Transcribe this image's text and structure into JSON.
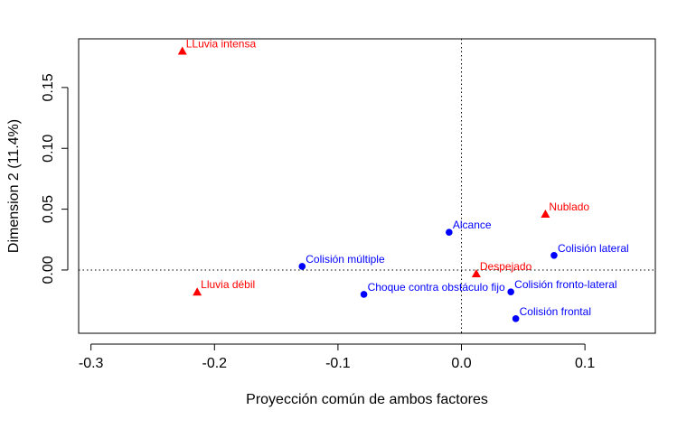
{
  "chart_data": {
    "type": "scatter",
    "title": "",
    "xlabel": "Proyección común de ambos factores",
    "ylabel": "Dimension 2 (11.4%)",
    "xlim": [
      -0.31,
      0.157
    ],
    "ylim": [
      -0.052,
      0.19
    ],
    "x_ticks": [
      -0.3,
      -0.2,
      -0.1,
      0.0,
      0.1
    ],
    "x_tick_labels": [
      "-0.3",
      "-0.2",
      "-0.1",
      "0.0",
      "0.1"
    ],
    "y_ticks": [
      0.0,
      0.05,
      0.1,
      0.15
    ],
    "y_tick_labels": [
      "0.00",
      "0.05",
      "0.10",
      "0.15"
    ],
    "reference_lines": {
      "x": 0,
      "y": 0,
      "style": "dotted"
    },
    "grid": false,
    "series": [
      {
        "marker": "triangle",
        "color": "#ff0000",
        "points": [
          {
            "label": "LLuvia intensa",
            "x": -0.226,
            "y": 0.18
          },
          {
            "label": "Lluvia débil",
            "x": -0.214,
            "y": -0.018
          },
          {
            "label": "Nublado",
            "x": 0.068,
            "y": 0.046
          },
          {
            "label": "Despejado",
            "x": 0.012,
            "y": -0.003
          }
        ]
      },
      {
        "marker": "circle",
        "color": "#0000ff",
        "points": [
          {
            "label": "Alcance",
            "x": -0.01,
            "y": 0.031
          },
          {
            "label": "Colisión múltiple",
            "x": -0.129,
            "y": 0.003
          },
          {
            "label": "Choque contra obstáculo fijo",
            "x": -0.079,
            "y": -0.02
          },
          {
            "label": "Colisión lateral",
            "x": 0.075,
            "y": 0.012
          },
          {
            "label": "Colisión fronto-lateral",
            "x": 0.04,
            "y": -0.018
          },
          {
            "label": "Colisión frontal",
            "x": 0.044,
            "y": -0.04
          }
        ]
      }
    ]
  }
}
